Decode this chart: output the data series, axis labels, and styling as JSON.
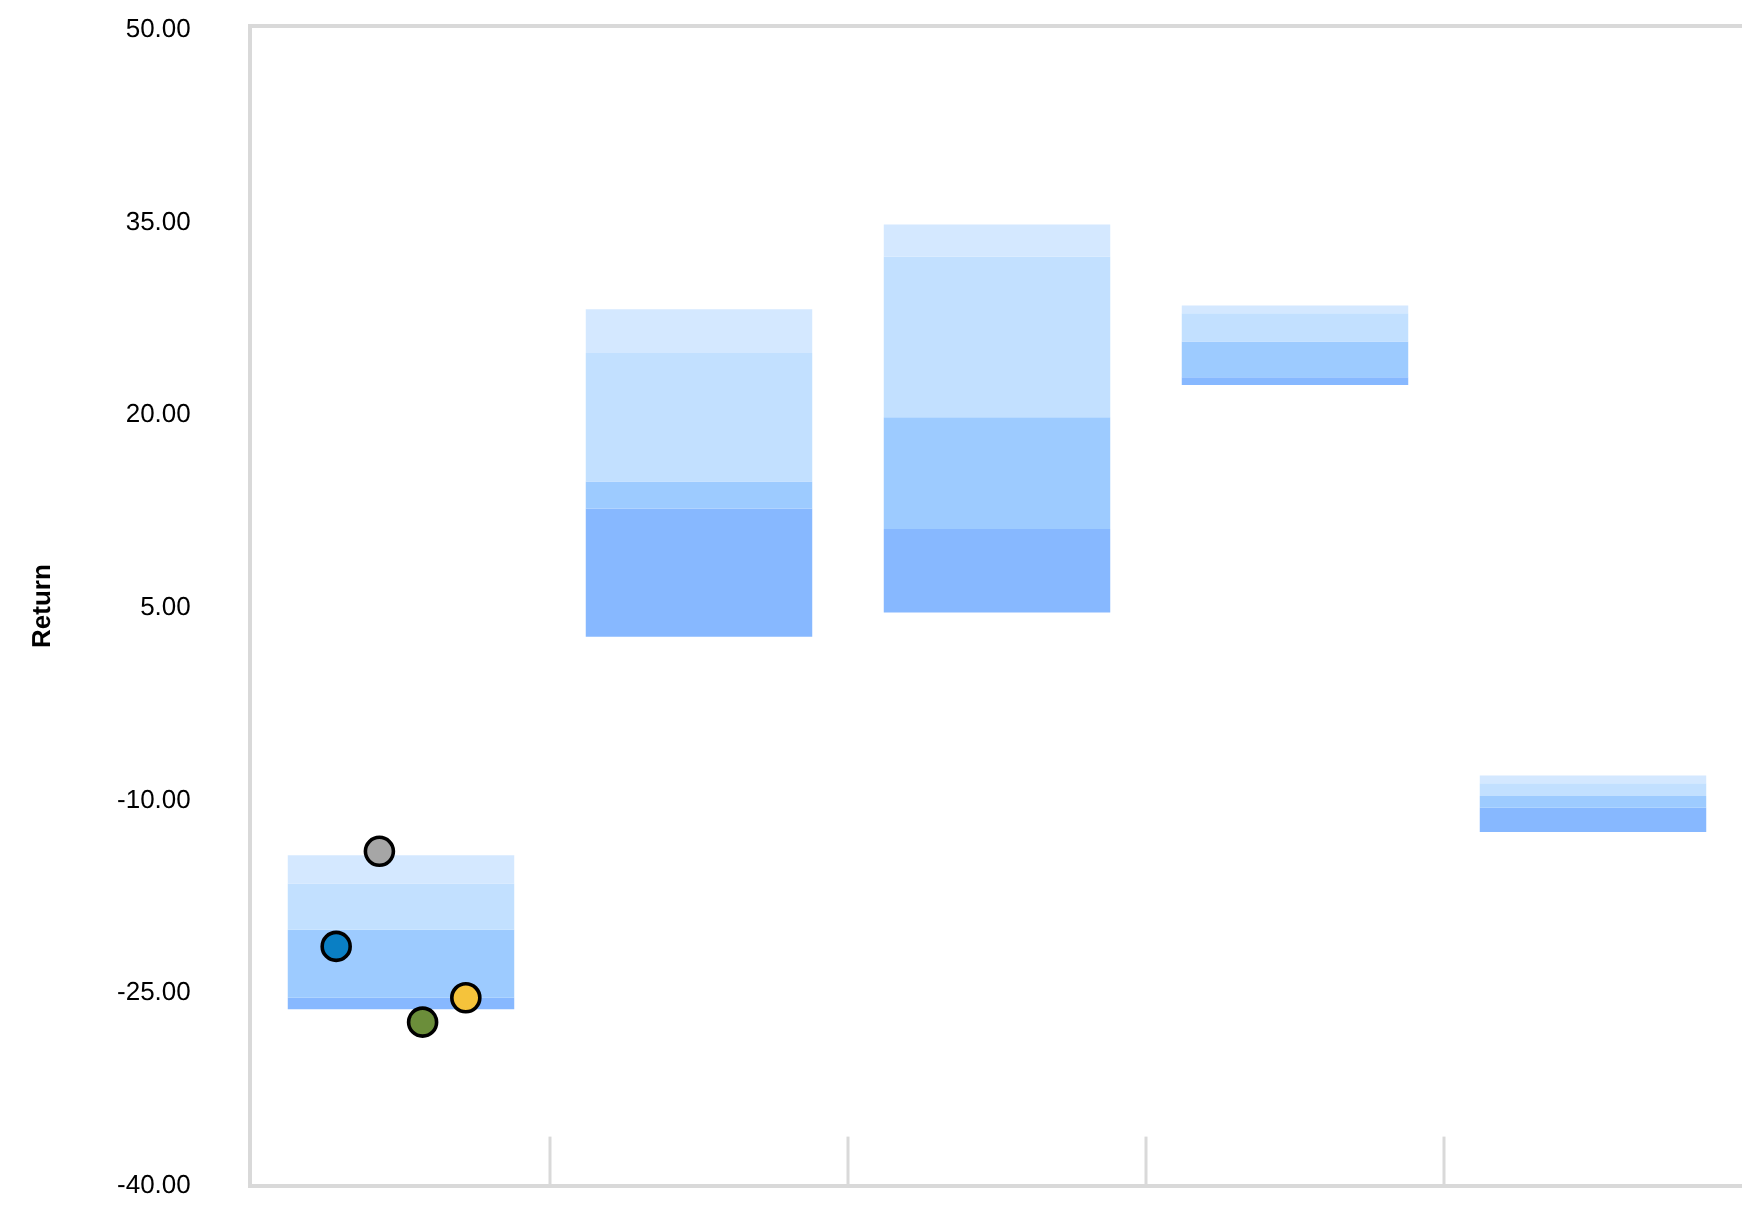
{
  "chart_data": {
    "type": "bar",
    "ylabel": "Return",
    "categories": [
      null,
      null,
      null,
      null,
      null
    ],
    "series": [
      {
        "color": "#87b8ff",
        "base": [
          -26.4,
          2.6,
          4.5,
          22.2,
          -12.6
        ],
        "values": [
          0.9,
          10.0,
          6.5,
          0.6,
          1.9
        ]
      },
      {
        "color": "#9dcbff",
        "base": [
          -25.5,
          12.6,
          11.0,
          22.8,
          -10.7
        ],
        "values": [
          5.3,
          2.1,
          8.7,
          2.8,
          0.9
        ]
      },
      {
        "color": "#c2e0ff",
        "base": [
          -20.2,
          14.7,
          19.7,
          25.6,
          -9.8
        ],
        "values": [
          3.6,
          10.0,
          12.5,
          2.2,
          1.0
        ]
      },
      {
        "color": "#d4e8ff",
        "base": [
          -16.6,
          24.7,
          32.2,
          27.8,
          -8.8
        ],
        "values": [
          2.2,
          3.4,
          2.5,
          0.6,
          0.6
        ]
      },
      {
        "type": "scatter",
        "color": "#0a7fc4",
        "values": [
          -21.5,
          null,
          null,
          null,
          null
        ]
      },
      {
        "type": "scatter",
        "color": "#a6a6a6",
        "values": [
          -14.1,
          null,
          null,
          null,
          null
        ]
      },
      {
        "type": "scatter",
        "color": "#6b8e3a",
        "values": [
          -27.4,
          null,
          null,
          null,
          null
        ]
      },
      {
        "type": "scatter",
        "color": "#f5c33b",
        "values": [
          -25.5,
          null,
          null,
          null,
          null
        ]
      }
    ],
    "marker": "circle",
    "ylim": [
      -40,
      50
    ],
    "yticks": [
      {
        "value": -40,
        "label": "-40.00"
      },
      {
        "value": -25,
        "label": "-25.00"
      },
      {
        "value": -10,
        "label": "-10.00"
      },
      {
        "value": 5,
        "label": "5.00"
      },
      {
        "value": 20,
        "label": "20.00"
      },
      {
        "value": 35,
        "label": "35.00"
      },
      {
        "value": 50,
        "label": "50.00"
      }
    ],
    "tick_labels": "y",
    "grid": false
  }
}
